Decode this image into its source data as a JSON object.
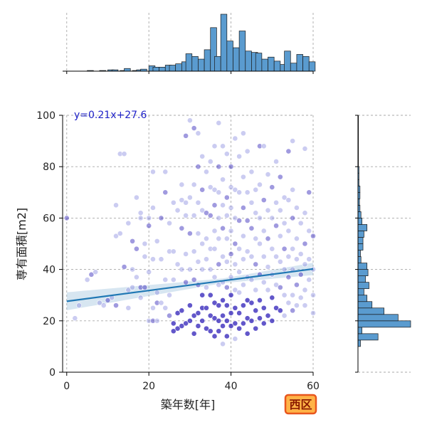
{
  "chart_data": {
    "type": "scatter",
    "xlabel": "築年数[年]",
    "ylabel": "専有面積[m2]",
    "xlim": [
      -1,
      60
    ],
    "ylim": [
      0,
      100
    ],
    "x_ticks": [
      0,
      20,
      40,
      60
    ],
    "y_ticks": [
      0,
      20,
      40,
      60,
      80,
      100
    ],
    "grid": true,
    "regression": {
      "slope": 0.21,
      "intercept": 27.6,
      "label": "y=0.21x+27.6"
    },
    "badge": "西区",
    "marginal_x_hist": {
      "bin_width": 1.5,
      "bin_starts": [
        5,
        8,
        10,
        11,
        13,
        14,
        16,
        17,
        18,
        20,
        21,
        22.5,
        24,
        25,
        26.5,
        28,
        29,
        30.5,
        32,
        33.5,
        35,
        36,
        37.5,
        39,
        40.5,
        42,
        43.5,
        45,
        46,
        47.5,
        49,
        50.5,
        52,
        53,
        54.5,
        56,
        57.5,
        59
      ],
      "counts": [
        1,
        1,
        2,
        2,
        1,
        4,
        1,
        2,
        3,
        8,
        6,
        6,
        9,
        9,
        11,
        14,
        26,
        22,
        18,
        32,
        65,
        22,
        85,
        45,
        35,
        60,
        30,
        28,
        27,
        18,
        21,
        15,
        10,
        30,
        12,
        25,
        22,
        14
      ]
    },
    "marginal_y_hist": {
      "bin_width": 2.5,
      "bin_starts": [
        10,
        12.5,
        15,
        17.5,
        20,
        22.5,
        25,
        27.5,
        30,
        32.5,
        35,
        37.5,
        40,
        42.5,
        45,
        47.5,
        50,
        52.5,
        55,
        57.5,
        60,
        62.5,
        65,
        67.5,
        70,
        72.5,
        75,
        77.5,
        80,
        82.5,
        85,
        87.5,
        90,
        92.5,
        95,
        97.5
      ],
      "counts": [
        5,
        40,
        8,
        105,
        80,
        52,
        28,
        18,
        12,
        22,
        15,
        20,
        18,
        6,
        5,
        10,
        10,
        12,
        18,
        8,
        6,
        4,
        3,
        4,
        4,
        2,
        2,
        2,
        1,
        1,
        1,
        1,
        1,
        1,
        1,
        1
      ]
    },
    "points": [
      [
        0,
        60
      ],
      [
        2,
        21
      ],
      [
        3,
        26
      ],
      [
        5,
        36
      ],
      [
        6,
        38
      ],
      [
        7,
        39
      ],
      [
        8,
        27
      ],
      [
        9,
        26
      ],
      [
        10,
        28
      ],
      [
        11,
        29
      ],
      [
        12,
        65
      ],
      [
        12,
        53
      ],
      [
        12,
        26
      ],
      [
        13,
        85
      ],
      [
        13,
        54
      ],
      [
        14,
        85
      ],
      [
        14,
        41
      ],
      [
        15,
        58
      ],
      [
        15,
        32
      ],
      [
        15,
        25
      ],
      [
        16,
        51
      ],
      [
        16,
        40
      ],
      [
        16,
        33
      ],
      [
        17,
        68
      ],
      [
        17,
        48
      ],
      [
        17,
        37
      ],
      [
        18,
        62
      ],
      [
        18,
        60
      ],
      [
        18,
        33
      ],
      [
        18,
        29
      ],
      [
        19,
        50
      ],
      [
        19,
        45
      ],
      [
        19,
        33
      ],
      [
        20,
        60
      ],
      [
        20,
        39
      ],
      [
        20,
        20
      ],
      [
        20,
        57
      ],
      [
        21,
        78
      ],
      [
        21,
        64
      ],
      [
        21,
        44
      ],
      [
        21,
        20
      ],
      [
        21,
        25
      ],
      [
        22,
        51
      ],
      [
        22,
        20
      ],
      [
        22,
        27
      ],
      [
        22,
        31
      ],
      [
        23,
        44
      ],
      [
        23,
        27
      ],
      [
        23,
        60
      ],
      [
        24,
        78
      ],
      [
        24,
        36
      ],
      [
        24,
        25
      ],
      [
        24,
        70
      ],
      [
        25,
        58
      ],
      [
        25,
        47
      ],
      [
        25,
        30
      ],
      [
        25,
        22
      ],
      [
        26,
        66
      ],
      [
        26,
        47
      ],
      [
        26,
        36
      ],
      [
        26,
        16
      ],
      [
        26,
        19
      ],
      [
        27,
        63
      ],
      [
        27,
        42
      ],
      [
        27,
        23
      ],
      [
        27,
        17
      ],
      [
        28,
        73
      ],
      [
        28,
        67
      ],
      [
        28,
        56
      ],
      [
        28,
        40
      ],
      [
        28,
        24
      ],
      [
        28,
        18
      ],
      [
        29,
        92
      ],
      [
        29,
        66
      ],
      [
        29,
        61
      ],
      [
        29,
        46
      ],
      [
        29,
        35
      ],
      [
        29,
        19
      ],
      [
        30,
        98
      ],
      [
        30,
        68
      ],
      [
        30,
        54
      ],
      [
        30,
        40
      ],
      [
        30,
        26
      ],
      [
        30,
        20
      ],
      [
        31,
        95
      ],
      [
        31,
        73
      ],
      [
        31,
        61
      ],
      [
        31,
        47
      ],
      [
        31,
        36
      ],
      [
        31,
        22
      ],
      [
        31,
        15
      ],
      [
        32,
        93
      ],
      [
        32,
        80
      ],
      [
        32,
        66
      ],
      [
        32,
        54
      ],
      [
        32,
        43
      ],
      [
        32,
        34
      ],
      [
        32,
        23
      ],
      [
        32,
        18
      ],
      [
        33,
        84
      ],
      [
        33,
        71
      ],
      [
        33,
        63
      ],
      [
        33,
        50
      ],
      [
        33,
        40
      ],
      [
        33,
        30
      ],
      [
        33,
        25
      ],
      [
        33,
        20
      ],
      [
        34,
        78
      ],
      [
        34,
        62
      ],
      [
        34,
        52
      ],
      [
        34,
        44
      ],
      [
        34,
        33
      ],
      [
        34,
        25
      ],
      [
        34,
        17
      ],
      [
        35,
        82
      ],
      [
        35,
        72
      ],
      [
        35,
        61
      ],
      [
        35,
        48
      ],
      [
        35,
        40
      ],
      [
        35,
        30
      ],
      [
        35,
        22
      ],
      [
        35,
        16
      ],
      [
        36,
        88
      ],
      [
        36,
        71
      ],
      [
        36,
        65
      ],
      [
        36,
        55
      ],
      [
        36,
        48
      ],
      [
        36,
        37
      ],
      [
        36,
        27
      ],
      [
        36,
        21
      ],
      [
        36,
        14
      ],
      [
        37,
        97
      ],
      [
        37,
        80
      ],
      [
        37,
        70
      ],
      [
        37,
        60
      ],
      [
        37,
        52
      ],
      [
        37,
        42
      ],
      [
        37,
        34
      ],
      [
        37,
        26
      ],
      [
        37,
        20
      ],
      [
        37,
        16
      ],
      [
        38,
        88
      ],
      [
        38,
        75
      ],
      [
        38,
        65
      ],
      [
        38,
        56
      ],
      [
        38,
        45
      ],
      [
        38,
        35
      ],
      [
        38,
        28
      ],
      [
        38,
        22
      ],
      [
        38,
        18
      ],
      [
        38,
        11
      ],
      [
        39,
        85
      ],
      [
        39,
        68
      ],
      [
        39,
        61
      ],
      [
        39,
        52
      ],
      [
        39,
        43
      ],
      [
        39,
        33
      ],
      [
        39,
        26
      ],
      [
        39,
        20
      ],
      [
        39,
        14
      ],
      [
        40,
        80
      ],
      [
        40,
        72
      ],
      [
        40,
        64
      ],
      [
        40,
        55
      ],
      [
        40,
        46
      ],
      [
        40,
        37
      ],
      [
        40,
        30
      ],
      [
        40,
        23
      ],
      [
        40,
        18
      ],
      [
        41,
        91
      ],
      [
        41,
        71
      ],
      [
        41,
        60
      ],
      [
        41,
        50
      ],
      [
        41,
        42
      ],
      [
        41,
        32
      ],
      [
        41,
        25
      ],
      [
        41,
        19
      ],
      [
        41,
        13
      ],
      [
        42,
        84
      ],
      [
        42,
        70
      ],
      [
        42,
        59
      ],
      [
        42,
        48
      ],
      [
        42,
        39
      ],
      [
        42,
        31
      ],
      [
        42,
        23
      ],
      [
        42,
        17
      ],
      [
        43,
        93
      ],
      [
        43,
        76
      ],
      [
        43,
        64
      ],
      [
        43,
        53
      ],
      [
        43,
        44
      ],
      [
        43,
        34
      ],
      [
        43,
        26
      ],
      [
        43,
        19
      ],
      [
        44,
        86
      ],
      [
        44,
        70
      ],
      [
        44,
        59
      ],
      [
        44,
        47
      ],
      [
        44,
        37
      ],
      [
        44,
        28
      ],
      [
        44,
        21
      ],
      [
        44,
        15
      ],
      [
        45,
        78
      ],
      [
        45,
        66
      ],
      [
        45,
        56
      ],
      [
        45,
        45
      ],
      [
        45,
        36
      ],
      [
        45,
        27
      ],
      [
        45,
        20
      ],
      [
        46,
        71
      ],
      [
        46,
        62
      ],
      [
        46,
        52
      ],
      [
        46,
        42
      ],
      [
        46,
        32
      ],
      [
        46,
        24
      ],
      [
        46,
        17
      ],
      [
        47,
        88
      ],
      [
        47,
        73
      ],
      [
        47,
        60
      ],
      [
        47,
        50
      ],
      [
        47,
        38
      ],
      [
        47,
        28
      ],
      [
        47,
        21
      ],
      [
        48,
        88
      ],
      [
        48,
        67
      ],
      [
        48,
        55
      ],
      [
        48,
        45
      ],
      [
        48,
        35
      ],
      [
        48,
        25
      ],
      [
        48,
        19
      ],
      [
        49,
        77
      ],
      [
        49,
        63
      ],
      [
        49,
        52
      ],
      [
        49,
        41
      ],
      [
        49,
        32
      ],
      [
        49,
        22
      ],
      [
        50,
        72
      ],
      [
        50,
        60
      ],
      [
        50,
        48
      ],
      [
        50,
        38
      ],
      [
        50,
        29
      ],
      [
        50,
        20
      ],
      [
        51,
        82
      ],
      [
        51,
        66
      ],
      [
        51,
        57
      ],
      [
        51,
        45
      ],
      [
        51,
        34
      ],
      [
        51,
        25
      ],
      [
        52,
        76
      ],
      [
        52,
        63
      ],
      [
        52,
        53
      ],
      [
        52,
        43
      ],
      [
        52,
        33
      ],
      [
        52,
        24
      ],
      [
        53,
        68
      ],
      [
        53,
        58
      ],
      [
        53,
        48
      ],
      [
        53,
        40
      ],
      [
        53,
        30
      ],
      [
        53,
        22
      ],
      [
        54,
        86
      ],
      [
        54,
        67
      ],
      [
        54,
        55
      ],
      [
        54,
        45
      ],
      [
        54,
        37
      ],
      [
        54,
        27
      ],
      [
        55,
        90
      ],
      [
        55,
        71
      ],
      [
        55,
        60
      ],
      [
        55,
        48
      ],
      [
        55,
        40
      ],
      [
        55,
        30
      ],
      [
        55,
        24
      ],
      [
        56,
        64
      ],
      [
        56,
        52
      ],
      [
        56,
        44
      ],
      [
        56,
        34
      ],
      [
        56,
        26
      ],
      [
        57,
        58
      ],
      [
        57,
        46
      ],
      [
        57,
        38
      ],
      [
        57,
        29
      ],
      [
        58,
        87
      ],
      [
        58,
        62
      ],
      [
        58,
        50
      ],
      [
        58,
        42
      ],
      [
        58,
        32
      ],
      [
        58,
        26
      ],
      [
        59,
        70
      ],
      [
        59,
        55
      ],
      [
        59,
        44
      ],
      [
        59,
        36
      ],
      [
        60,
        53
      ],
      [
        60,
        40
      ],
      [
        60,
        30
      ],
      [
        60,
        23
      ]
    ]
  }
}
